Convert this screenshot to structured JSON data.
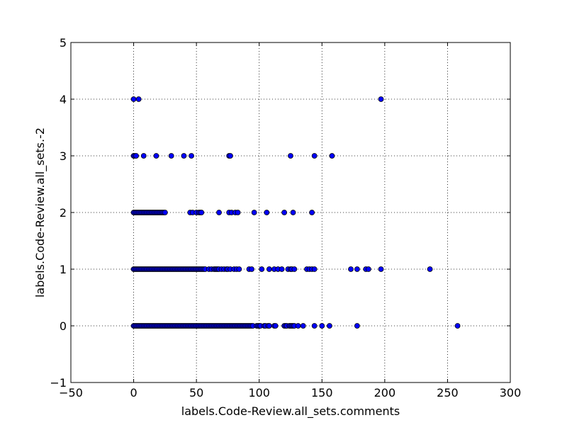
{
  "chart_data": {
    "type": "scatter",
    "title": "",
    "xlabel": "labels.Code-Review.all_sets.comments",
    "ylabel": "labels.Code-Review.all_sets.-2",
    "xlim": [
      -50,
      300
    ],
    "ylim": [
      -1,
      5
    ],
    "x_ticks": [
      -50,
      0,
      50,
      100,
      150,
      200,
      250,
      300
    ],
    "y_ticks": [
      -1,
      0,
      1,
      2,
      3,
      4,
      5
    ],
    "x_tick_labels": [
      "−50",
      "0",
      "50",
      "100",
      "150",
      "200",
      "250",
      "300"
    ],
    "y_tick_labels": [
      "−1",
      "0",
      "1",
      "2",
      "3",
      "4",
      "5"
    ],
    "grid": true,
    "marker_color": "#0000ff",
    "marker_edge_color": "#000000",
    "series": [
      {
        "points": [
          [
            0,
            4
          ],
          [
            4,
            4
          ],
          [
            197,
            4
          ],
          [
            0,
            3
          ],
          [
            1,
            3
          ],
          [
            2,
            3
          ],
          [
            8,
            3
          ],
          [
            18,
            3
          ],
          [
            30,
            3
          ],
          [
            40,
            3
          ],
          [
            46,
            3
          ],
          [
            76,
            3
          ],
          [
            77,
            3
          ],
          [
            125,
            3
          ],
          [
            144,
            3
          ],
          [
            158,
            3
          ],
          [
            0,
            2
          ],
          [
            1,
            2
          ],
          [
            2,
            2
          ],
          [
            3,
            2
          ],
          [
            4,
            2
          ],
          [
            5,
            2
          ],
          [
            6,
            2
          ],
          [
            7,
            2
          ],
          [
            8,
            2
          ],
          [
            9,
            2
          ],
          [
            10,
            2
          ],
          [
            11,
            2
          ],
          [
            12,
            2
          ],
          [
            13,
            2
          ],
          [
            14,
            2
          ],
          [
            15,
            2
          ],
          [
            16,
            2
          ],
          [
            17,
            2
          ],
          [
            18,
            2
          ],
          [
            19,
            2
          ],
          [
            20,
            2
          ],
          [
            21,
            2
          ],
          [
            22,
            2
          ],
          [
            23,
            2
          ],
          [
            24,
            2
          ],
          [
            25,
            2
          ],
          [
            45,
            2
          ],
          [
            47,
            2
          ],
          [
            50,
            2
          ],
          [
            52,
            2
          ],
          [
            53,
            2
          ],
          [
            54,
            2
          ],
          [
            68,
            2
          ],
          [
            76,
            2
          ],
          [
            78,
            2
          ],
          [
            81,
            2
          ],
          [
            83,
            2
          ],
          [
            96,
            2
          ],
          [
            106,
            2
          ],
          [
            120,
            2
          ],
          [
            127,
            2
          ],
          [
            142,
            2
          ],
          [
            0,
            1
          ],
          [
            1,
            1
          ],
          [
            2,
            1
          ],
          [
            3,
            1
          ],
          [
            4,
            1
          ],
          [
            5,
            1
          ],
          [
            6,
            1
          ],
          [
            7,
            1
          ],
          [
            8,
            1
          ],
          [
            9,
            1
          ],
          [
            10,
            1
          ],
          [
            11,
            1
          ],
          [
            12,
            1
          ],
          [
            13,
            1
          ],
          [
            14,
            1
          ],
          [
            15,
            1
          ],
          [
            16,
            1
          ],
          [
            17,
            1
          ],
          [
            18,
            1
          ],
          [
            19,
            1
          ],
          [
            20,
            1
          ],
          [
            21,
            1
          ],
          [
            22,
            1
          ],
          [
            23,
            1
          ],
          [
            24,
            1
          ],
          [
            25,
            1
          ],
          [
            26,
            1
          ],
          [
            27,
            1
          ],
          [
            28,
            1
          ],
          [
            29,
            1
          ],
          [
            30,
            1
          ],
          [
            31,
            1
          ],
          [
            32,
            1
          ],
          [
            33,
            1
          ],
          [
            34,
            1
          ],
          [
            35,
            1
          ],
          [
            36,
            1
          ],
          [
            37,
            1
          ],
          [
            38,
            1
          ],
          [
            39,
            1
          ],
          [
            40,
            1
          ],
          [
            41,
            1
          ],
          [
            42,
            1
          ],
          [
            43,
            1
          ],
          [
            44,
            1
          ],
          [
            45,
            1
          ],
          [
            46,
            1
          ],
          [
            47,
            1
          ],
          [
            48,
            1
          ],
          [
            49,
            1
          ],
          [
            50,
            1
          ],
          [
            51,
            1
          ],
          [
            52,
            1
          ],
          [
            53,
            1
          ],
          [
            54,
            1
          ],
          [
            55,
            1
          ],
          [
            56,
            1
          ],
          [
            57,
            1
          ],
          [
            60,
            1
          ],
          [
            62,
            1
          ],
          [
            64,
            1
          ],
          [
            65,
            1
          ],
          [
            66,
            1
          ],
          [
            67,
            1
          ],
          [
            68,
            1
          ],
          [
            70,
            1
          ],
          [
            72,
            1
          ],
          [
            74,
            1
          ],
          [
            75,
            1
          ],
          [
            77,
            1
          ],
          [
            80,
            1
          ],
          [
            82,
            1
          ],
          [
            84,
            1
          ],
          [
            92,
            1
          ],
          [
            94,
            1
          ],
          [
            102,
            1
          ],
          [
            108,
            1
          ],
          [
            112,
            1
          ],
          [
            115,
            1
          ],
          [
            118,
            1
          ],
          [
            123,
            1
          ],
          [
            125,
            1
          ],
          [
            126,
            1
          ],
          [
            128,
            1
          ],
          [
            138,
            1
          ],
          [
            140,
            1
          ],
          [
            142,
            1
          ],
          [
            144,
            1
          ],
          [
            173,
            1
          ],
          [
            178,
            1
          ],
          [
            185,
            1
          ],
          [
            187,
            1
          ],
          [
            197,
            1
          ],
          [
            236,
            1
          ],
          [
            0,
            0
          ],
          [
            1,
            0
          ],
          [
            2,
            0
          ],
          [
            3,
            0
          ],
          [
            4,
            0
          ],
          [
            5,
            0
          ],
          [
            6,
            0
          ],
          [
            7,
            0
          ],
          [
            8,
            0
          ],
          [
            9,
            0
          ],
          [
            10,
            0
          ],
          [
            11,
            0
          ],
          [
            12,
            0
          ],
          [
            13,
            0
          ],
          [
            14,
            0
          ],
          [
            15,
            0
          ],
          [
            16,
            0
          ],
          [
            17,
            0
          ],
          [
            18,
            0
          ],
          [
            19,
            0
          ],
          [
            20,
            0
          ],
          [
            21,
            0
          ],
          [
            22,
            0
          ],
          [
            23,
            0
          ],
          [
            24,
            0
          ],
          [
            25,
            0
          ],
          [
            26,
            0
          ],
          [
            27,
            0
          ],
          [
            28,
            0
          ],
          [
            29,
            0
          ],
          [
            30,
            0
          ],
          [
            31,
            0
          ],
          [
            32,
            0
          ],
          [
            33,
            0
          ],
          [
            34,
            0
          ],
          [
            35,
            0
          ],
          [
            36,
            0
          ],
          [
            37,
            0
          ],
          [
            38,
            0
          ],
          [
            39,
            0
          ],
          [
            40,
            0
          ],
          [
            41,
            0
          ],
          [
            42,
            0
          ],
          [
            43,
            0
          ],
          [
            44,
            0
          ],
          [
            45,
            0
          ],
          [
            46,
            0
          ],
          [
            47,
            0
          ],
          [
            48,
            0
          ],
          [
            49,
            0
          ],
          [
            50,
            0
          ],
          [
            51,
            0
          ],
          [
            52,
            0
          ],
          [
            53,
            0
          ],
          [
            54,
            0
          ],
          [
            55,
            0
          ],
          [
            56,
            0
          ],
          [
            57,
            0
          ],
          [
            58,
            0
          ],
          [
            59,
            0
          ],
          [
            60,
            0
          ],
          [
            61,
            0
          ],
          [
            62,
            0
          ],
          [
            63,
            0
          ],
          [
            64,
            0
          ],
          [
            65,
            0
          ],
          [
            66,
            0
          ],
          [
            67,
            0
          ],
          [
            68,
            0
          ],
          [
            69,
            0
          ],
          [
            70,
            0
          ],
          [
            71,
            0
          ],
          [
            72,
            0
          ],
          [
            73,
            0
          ],
          [
            74,
            0
          ],
          [
            75,
            0
          ],
          [
            76,
            0
          ],
          [
            77,
            0
          ],
          [
            78,
            0
          ],
          [
            79,
            0
          ],
          [
            80,
            0
          ],
          [
            81,
            0
          ],
          [
            82,
            0
          ],
          [
            83,
            0
          ],
          [
            84,
            0
          ],
          [
            85,
            0
          ],
          [
            86,
            0
          ],
          [
            87,
            0
          ],
          [
            88,
            0
          ],
          [
            89,
            0
          ],
          [
            90,
            0
          ],
          [
            91,
            0
          ],
          [
            92,
            0
          ],
          [
            93,
            0
          ],
          [
            94,
            0
          ],
          [
            95,
            0
          ],
          [
            98,
            0
          ],
          [
            99,
            0
          ],
          [
            100,
            0
          ],
          [
            101,
            0
          ],
          [
            104,
            0
          ],
          [
            105,
            0
          ],
          [
            107,
            0
          ],
          [
            108,
            0
          ],
          [
            112,
            0
          ],
          [
            113,
            0
          ],
          [
            120,
            0
          ],
          [
            121,
            0
          ],
          [
            122,
            0
          ],
          [
            124,
            0
          ],
          [
            125,
            0
          ],
          [
            126,
            0
          ],
          [
            127,
            0
          ],
          [
            128,
            0
          ],
          [
            131,
            0
          ],
          [
            135,
            0
          ],
          [
            144,
            0
          ],
          [
            150,
            0
          ],
          [
            156,
            0
          ],
          [
            178,
            0
          ],
          [
            258,
            0
          ]
        ]
      }
    ]
  }
}
